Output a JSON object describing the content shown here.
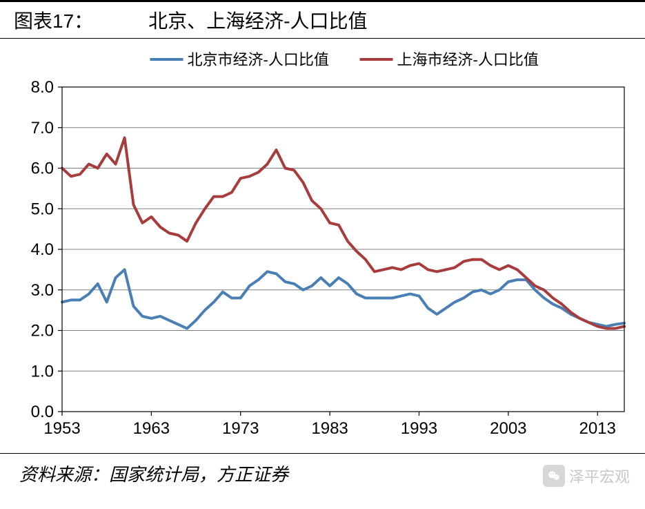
{
  "header": {
    "label": "图表17：",
    "title": "北京、上海经济-人口比值"
  },
  "chart": {
    "type": "line",
    "background_color": "#ffffff",
    "plot_border_color": "#000000",
    "plot_border_width": 1.2,
    "grid_color": "#808080",
    "grid_width": 1,
    "axis_font_size": 24,
    "axis_font_color": "#000000",
    "ylim": [
      0.0,
      8.0
    ],
    "ytick_step": 1.0,
    "yticks": [
      "0.0",
      "1.0",
      "2.0",
      "3.0",
      "4.0",
      "5.0",
      "6.0",
      "7.0",
      "8.0"
    ],
    "xlim": [
      1953,
      2016
    ],
    "xtick_step": 10,
    "xticks": [
      "1953",
      "1963",
      "1973",
      "1983",
      "1993",
      "2003",
      "2013"
    ],
    "legend": {
      "position": "top-center",
      "font_size": 22,
      "items": [
        {
          "label": "北京市经济-人口比值",
          "color": "#4a7fb5",
          "width": 4
        },
        {
          "label": "上海市经济-人口比值",
          "color": "#a83c3c",
          "width": 4
        }
      ]
    },
    "series": [
      {
        "name": "beijing",
        "color": "#4a7fb5",
        "width": 4,
        "x": [
          1953,
          1954,
          1955,
          1956,
          1957,
          1958,
          1959,
          1960,
          1961,
          1962,
          1963,
          1964,
          1965,
          1966,
          1967,
          1968,
          1969,
          1970,
          1971,
          1972,
          1973,
          1974,
          1975,
          1976,
          1977,
          1978,
          1979,
          1980,
          1981,
          1982,
          1983,
          1984,
          1985,
          1986,
          1987,
          1988,
          1989,
          1990,
          1991,
          1992,
          1993,
          1994,
          1995,
          1996,
          1997,
          1998,
          1999,
          2000,
          2001,
          2002,
          2003,
          2004,
          2005,
          2006,
          2007,
          2008,
          2009,
          2010,
          2011,
          2012,
          2013,
          2014,
          2015,
          2016
        ],
        "y": [
          2.7,
          2.75,
          2.75,
          2.9,
          3.15,
          2.7,
          3.3,
          3.5,
          2.6,
          2.35,
          2.3,
          2.35,
          2.25,
          2.15,
          2.05,
          2.25,
          2.5,
          2.7,
          2.95,
          2.8,
          2.8,
          3.1,
          3.25,
          3.45,
          3.4,
          3.2,
          3.15,
          3.0,
          3.1,
          3.3,
          3.1,
          3.3,
          3.15,
          2.9,
          2.8,
          2.8,
          2.8,
          2.8,
          2.85,
          2.9,
          2.85,
          2.55,
          2.4,
          2.55,
          2.7,
          2.8,
          2.95,
          3.0,
          2.9,
          3.0,
          3.2,
          3.25,
          3.25,
          3.0,
          2.8,
          2.65,
          2.55,
          2.4,
          2.3,
          2.2,
          2.15,
          2.1,
          2.15,
          2.18
        ]
      },
      {
        "name": "shanghai",
        "color": "#a83c3c",
        "width": 4,
        "x": [
          1953,
          1954,
          1955,
          1956,
          1957,
          1958,
          1959,
          1960,
          1961,
          1962,
          1963,
          1964,
          1965,
          1966,
          1967,
          1968,
          1969,
          1970,
          1971,
          1972,
          1973,
          1974,
          1975,
          1976,
          1977,
          1978,
          1979,
          1980,
          1981,
          1982,
          1983,
          1984,
          1985,
          1986,
          1987,
          1988,
          1989,
          1990,
          1991,
          1992,
          1993,
          1994,
          1995,
          1996,
          1997,
          1998,
          1999,
          2000,
          2001,
          2002,
          2003,
          2004,
          2005,
          2006,
          2007,
          2008,
          2009,
          2010,
          2011,
          2012,
          2013,
          2014,
          2015,
          2016
        ],
        "y": [
          6.0,
          5.8,
          5.85,
          6.1,
          6.0,
          6.35,
          6.1,
          6.75,
          5.1,
          4.65,
          4.8,
          4.55,
          4.4,
          4.35,
          4.2,
          4.65,
          5.0,
          5.3,
          5.3,
          5.4,
          5.75,
          5.8,
          5.9,
          6.1,
          6.45,
          6.0,
          5.95,
          5.65,
          5.2,
          5.0,
          4.65,
          4.6,
          4.2,
          3.95,
          3.75,
          3.45,
          3.5,
          3.55,
          3.5,
          3.6,
          3.65,
          3.5,
          3.45,
          3.5,
          3.55,
          3.7,
          3.75,
          3.75,
          3.6,
          3.5,
          3.6,
          3.5,
          3.3,
          3.1,
          3.0,
          2.8,
          2.65,
          2.45,
          2.3,
          2.2,
          2.1,
          2.05,
          2.05,
          2.1
        ]
      }
    ]
  },
  "footer": {
    "source": "资料来源：国家统计局，方正证券"
  },
  "watermark": {
    "text": "泽平宏观"
  }
}
